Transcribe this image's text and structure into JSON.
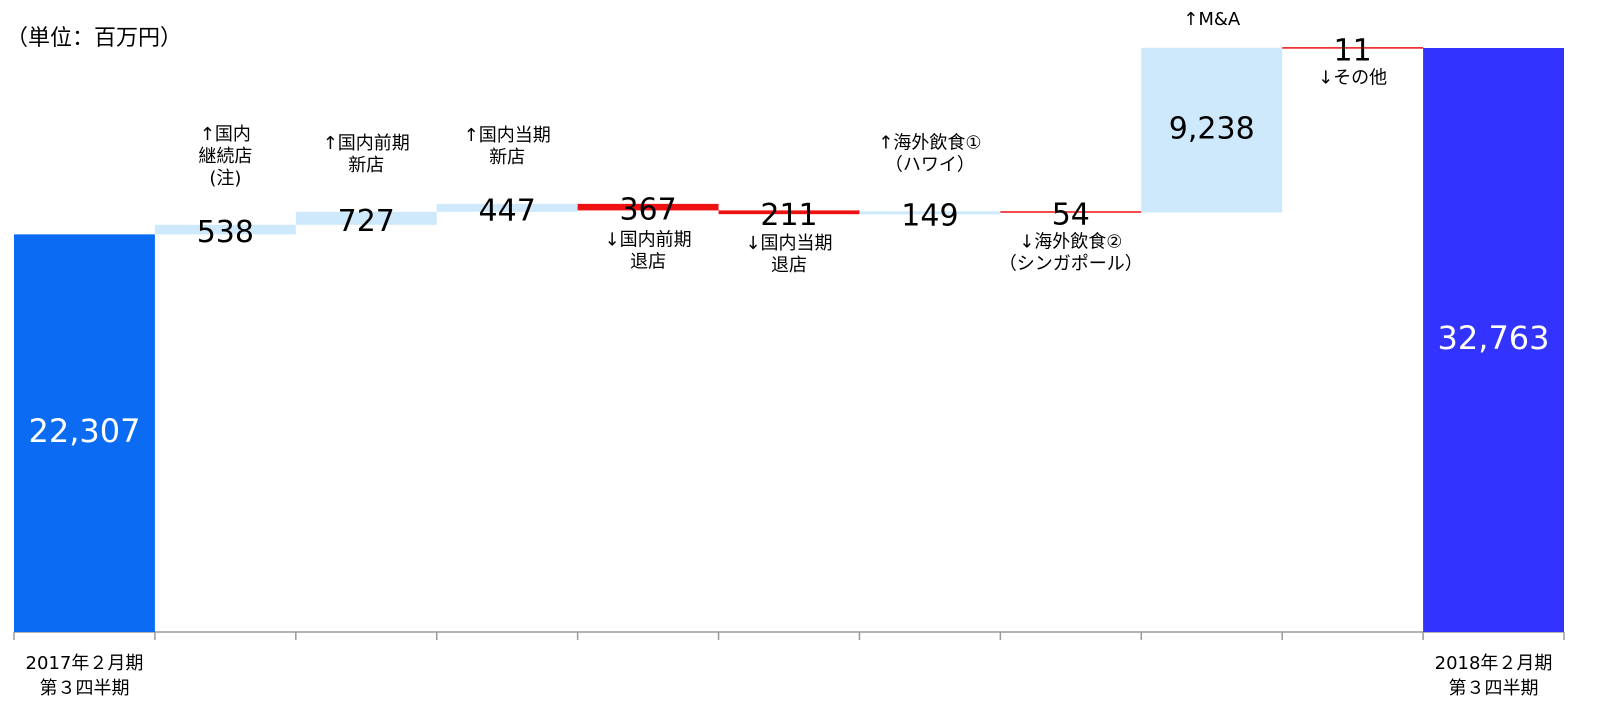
{
  "unit_label": "（単位：百万円）",
  "chart_data": {
    "type": "waterfall",
    "title": "",
    "xlabel": "",
    "ylabel": "",
    "ylim": [
      0,
      34500
    ],
    "grid": false,
    "colors": {
      "start": "#0b6cf3",
      "end": "#3333ff",
      "increase": "#cde9fb",
      "decrease": "#ee1111",
      "axis": "#9a9a9a"
    },
    "steps": [
      {
        "kind": "total",
        "value": 22307,
        "value_label": "22,307",
        "category_label": [
          "2017年２月期",
          "第３四半期"
        ],
        "annotation": []
      },
      {
        "kind": "increase",
        "value": 538,
        "value_label": "538",
        "category_label": [],
        "annotation": [
          "↑国内",
          "継続店",
          "(注)"
        ]
      },
      {
        "kind": "increase",
        "value": 727,
        "value_label": "727",
        "category_label": [],
        "annotation": [
          "↑国内前期",
          "新店"
        ]
      },
      {
        "kind": "increase",
        "value": 447,
        "value_label": "447",
        "category_label": [],
        "annotation": [
          "↑国内当期",
          "新店"
        ]
      },
      {
        "kind": "decrease",
        "value": 367,
        "value_label": "367",
        "category_label": [],
        "annotation": [
          "↓国内前期",
          "退店"
        ]
      },
      {
        "kind": "decrease",
        "value": 211,
        "value_label": "211",
        "category_label": [],
        "annotation": [
          "↓国内当期",
          "退店"
        ]
      },
      {
        "kind": "increase",
        "value": 149,
        "value_label": "149",
        "category_label": [],
        "annotation": [
          "↑海外飲食①",
          "（ハワイ）"
        ]
      },
      {
        "kind": "decrease",
        "value": 54,
        "value_label": "54",
        "category_label": [],
        "annotation": [
          "↓海外飲食②",
          "（シンガポール）"
        ]
      },
      {
        "kind": "increase",
        "value": 9238,
        "value_label": "9,238",
        "category_label": [],
        "annotation": [
          "↑M&A"
        ]
      },
      {
        "kind": "decrease",
        "value": 11,
        "value_label": "11",
        "category_label": [],
        "annotation": [
          "↓その他"
        ]
      },
      {
        "kind": "total",
        "value": 32763,
        "value_label": "32,763",
        "category_label": [
          "2018年２月期",
          "第３四半期"
        ],
        "annotation": []
      }
    ]
  }
}
